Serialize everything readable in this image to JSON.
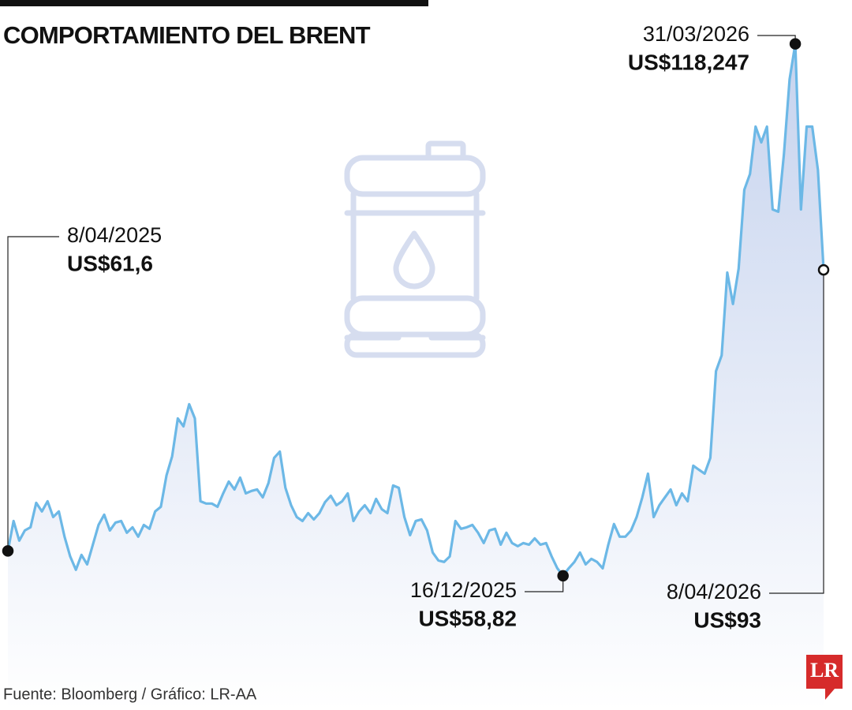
{
  "chart_data": {
    "type": "area",
    "title": "COMPORTAMIENTO DEL BRENT",
    "source": "Fuente: Bloomberg / Gráfico: LR-AA",
    "logo": "LR",
    "color": "#6cb8e6",
    "fill_color": "#c6d3ee",
    "ylim": [
      50,
      122
    ],
    "values": [
      61.6,
      64.95,
      62.75,
      63.89,
      64.24,
      66.97,
      66.01,
      67.15,
      65.39,
      66.01,
      63.19,
      60.98,
      59.49,
      61.16,
      60.1,
      62.3,
      64.51,
      65.65,
      63.89,
      64.77,
      64.95,
      63.63,
      64.24,
      63.19,
      64.51,
      64.07,
      66.01,
      66.53,
      70.06,
      72.17,
      76.4,
      75.52,
      77.99,
      76.4,
      67.15,
      66.89,
      66.89,
      66.53,
      68.03,
      69.35,
      68.47,
      69.79,
      68.03,
      68.3,
      68.47,
      67.59,
      69.18,
      72.0,
      72.7,
      68.65,
      66.71,
      65.39,
      64.95,
      65.83,
      65.12,
      65.83,
      67.06,
      67.77,
      66.71,
      67.15,
      68.03,
      64.95,
      66.01,
      66.71,
      65.83,
      67.41,
      66.27,
      65.83,
      68.91,
      68.65,
      65.39,
      63.36,
      64.95,
      65.12,
      63.89,
      61.42,
      60.54,
      60.37,
      60.98,
      64.95,
      64.07,
      64.24,
      64.51,
      63.63,
      62.48,
      63.89,
      64.07,
      62.3,
      63.63,
      62.48,
      62.13,
      62.48,
      62.3,
      63.01,
      62.3,
      62.48,
      60.98,
      59.66,
      58.82,
      59.66,
      60.37,
      61.42,
      60.1,
      60.72,
      60.37,
      59.66,
      62.3,
      64.6,
      63.19,
      63.19,
      63.89,
      65.39,
      67.59,
      70.23,
      65.39,
      66.71,
      67.59,
      68.47,
      66.71,
      68.03,
      67.15,
      71.12,
      70.67,
      70.23,
      72.0,
      81.69,
      83.45,
      92.7,
      89.18,
      93.14,
      101.95,
      103.71,
      109.0,
      107.24,
      109.0,
      99.75,
      99.49,
      105.92,
      114.29,
      118.247,
      99.75,
      109.0,
      109.0,
      104.16,
      93
    ],
    "annotations": [
      {
        "date": "8/04/2025",
        "label": "US$61,6",
        "value": 61.6
      },
      {
        "date": "31/03/2026",
        "label": "US$118,247",
        "value": 118.247
      },
      {
        "date": "16/12/2025",
        "label": "US$58,82",
        "value": 58.82
      },
      {
        "date": "8/04/2026",
        "label": "US$93",
        "value": 93
      }
    ]
  }
}
